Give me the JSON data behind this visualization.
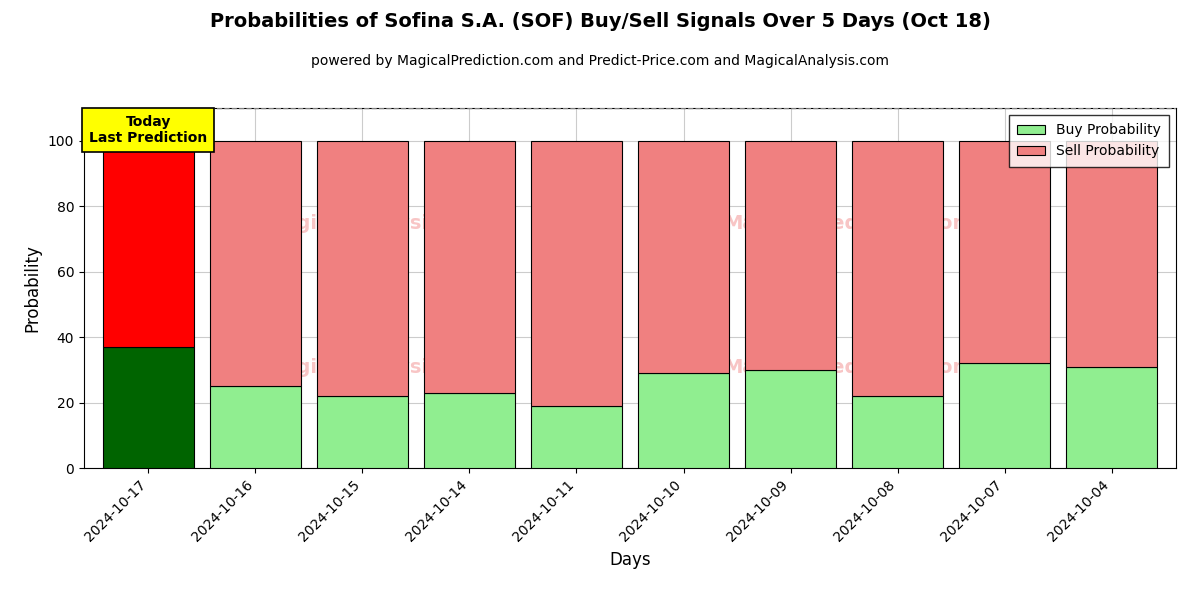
{
  "title": "Probabilities of Sofina S.A. (SOF) Buy/Sell Signals Over 5 Days (Oct 18)",
  "subtitle": "powered by MagicalPrediction.com and Predict-Price.com and MagicalAnalysis.com",
  "xlabel": "Days",
  "ylabel": "Probability",
  "categories": [
    "2024-10-17",
    "2024-10-16",
    "2024-10-15",
    "2024-10-14",
    "2024-10-11",
    "2024-10-10",
    "2024-10-09",
    "2024-10-08",
    "2024-10-07",
    "2024-10-04"
  ],
  "buy_values": [
    37,
    25,
    22,
    23,
    19,
    29,
    30,
    22,
    32,
    31
  ],
  "sell_values": [
    63,
    75,
    78,
    77,
    81,
    71,
    70,
    78,
    68,
    69
  ],
  "today_buy_color": "#006400",
  "today_sell_color": "#FF0000",
  "buy_color": "#90EE90",
  "sell_color": "#F08080",
  "today_label_bg": "#FFFF00",
  "today_label_text": "Today\nLast Prediction",
  "legend_buy_label": "Buy Probability",
  "legend_sell_label": "Sell Probability",
  "ylim": [
    0,
    110
  ],
  "yticks": [
    0,
    20,
    40,
    60,
    80,
    100
  ],
  "dashed_line_y": 110,
  "watermark_color": "#F08080",
  "bar_width": 0.85,
  "edgecolor": "#000000",
  "grid_color": "#cccccc",
  "title_fontsize": 14,
  "subtitle_fontsize": 10,
  "axis_label_fontsize": 12,
  "tick_fontsize": 10,
  "legend_fontsize": 10
}
